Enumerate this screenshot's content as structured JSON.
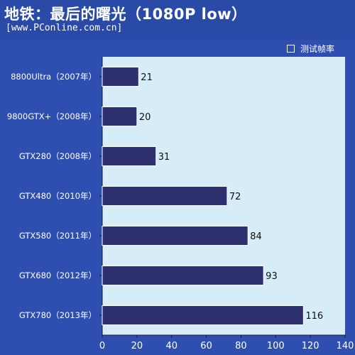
{
  "header": {
    "title": "地铁：最后的曙光（1080P low）",
    "source": "[www.PConline.com.cn]"
  },
  "colors": {
    "background": "#2a4aa8",
    "plot_area": "#d6ecf6",
    "bar": "#2e2f6e",
    "text": "#ffffff",
    "value_text": "#111111"
  },
  "chart_data": {
    "type": "bar",
    "orientation": "horizontal",
    "categories": [
      "8800Ultra（2007年）",
      "9800GTX+（2008年）",
      "GTX280（2008年）",
      "GTX480（2010年）",
      "GTX580（2011年）",
      "GTX680（2012年）",
      "GTX780（2013年）"
    ],
    "series": [
      {
        "name": "测试帧率",
        "values": [
          21,
          20,
          31,
          72,
          84,
          93,
          116
        ]
      }
    ],
    "xlim": [
      0,
      140
    ],
    "xticks": [
      0,
      20,
      40,
      60,
      80,
      100,
      120,
      140
    ],
    "grid": false,
    "legend": "top-right"
  }
}
